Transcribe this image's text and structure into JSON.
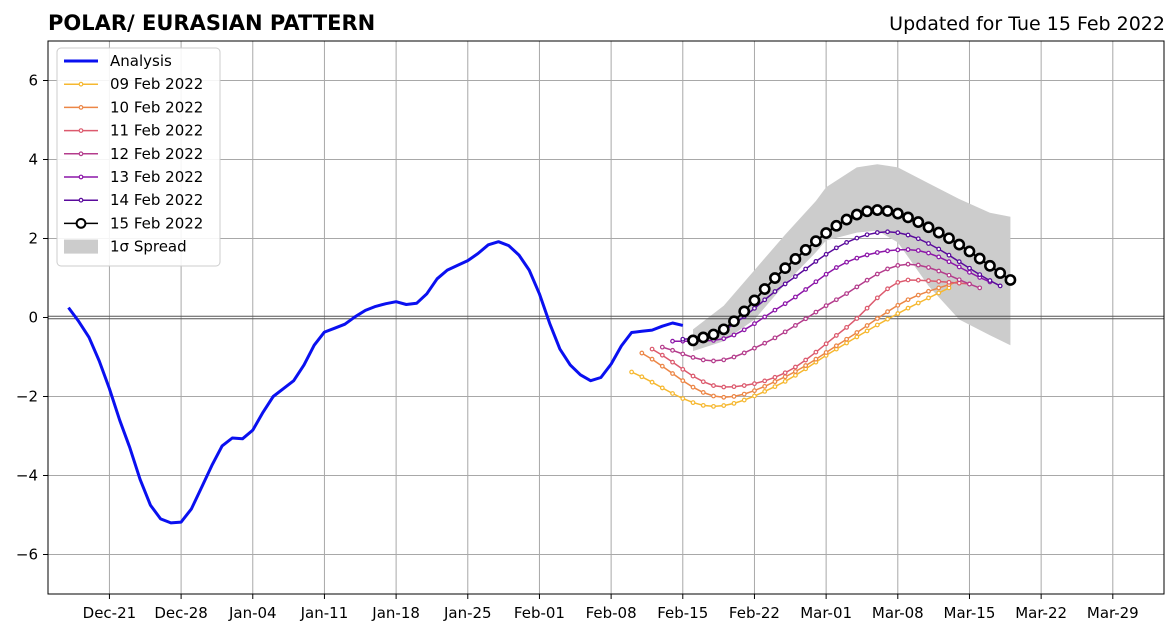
{
  "header": {
    "title": "POLAR/ EURASIAN  PATTERN",
    "updated": "Updated for Tue 15 Feb 2022"
  },
  "chart_data": {
    "type": "line",
    "title": "POLAR/ EURASIAN  PATTERN",
    "xlabel": "",
    "ylabel": "",
    "x_axis": {
      "type": "date",
      "range": [
        "2021-12-15",
        "2022-04-03"
      ],
      "tick_dates": [
        "2021-12-21",
        "2021-12-28",
        "2022-01-04",
        "2022-01-11",
        "2022-01-18",
        "2022-01-25",
        "2022-02-01",
        "2022-02-08",
        "2022-02-15",
        "2022-02-22",
        "2022-03-01",
        "2022-03-08",
        "2022-03-15",
        "2022-03-22",
        "2022-03-29"
      ],
      "tick_labels": [
        "Dec-21",
        "Dec-28",
        "Jan-04",
        "Jan-11",
        "Jan-18",
        "Jan-25",
        "Feb-01",
        "Feb-08",
        "Feb-15",
        "Feb-22",
        "Mar-01",
        "Mar-08",
        "Mar-15",
        "Mar-22",
        "Mar-29"
      ]
    },
    "y_axis": {
      "range": [
        -7,
        7
      ],
      "ticks": [
        -6,
        -4,
        -2,
        0,
        2,
        4,
        6
      ],
      "tick_labels": [
        "−6",
        "−4",
        "−2",
        "0",
        "2",
        "4",
        "6"
      ]
    },
    "grid": true,
    "zero_line": true,
    "legend": {
      "position": "top-left",
      "entries": [
        "Analysis",
        "09 Feb 2022",
        "10 Feb 2022",
        "11 Feb 2022",
        "12 Feb 2022",
        "13 Feb 2022",
        "14 Feb 2022",
        "15 Feb 2022",
        "1σ Spread"
      ]
    },
    "analysis": {
      "name": "Analysis",
      "color": "#0a10f0",
      "points": [
        [
          "2021-12-17",
          0.25
        ],
        [
          "2021-12-18",
          -0.1
        ],
        [
          "2021-12-19",
          -0.5
        ],
        [
          "2021-12-20",
          -1.1
        ],
        [
          "2021-12-21",
          -1.8
        ],
        [
          "2021-12-22",
          -2.6
        ],
        [
          "2021-12-23",
          -3.3
        ],
        [
          "2021-12-24",
          -4.1
        ],
        [
          "2021-12-25",
          -4.75
        ],
        [
          "2021-12-26",
          -5.1
        ],
        [
          "2021-12-27",
          -5.2
        ],
        [
          "2021-12-28",
          -5.18
        ],
        [
          "2021-12-29",
          -4.85
        ],
        [
          "2021-12-30",
          -4.3
        ],
        [
          "2021-12-31",
          -3.75
        ],
        [
          "2022-01-01",
          -3.25
        ],
        [
          "2022-01-02",
          -3.05
        ],
        [
          "2022-01-03",
          -3.07
        ],
        [
          "2022-01-04",
          -2.85
        ],
        [
          "2022-01-05",
          -2.4
        ],
        [
          "2022-01-06",
          -2.0
        ],
        [
          "2022-01-07",
          -1.8
        ],
        [
          "2022-01-08",
          -1.6
        ],
        [
          "2022-01-09",
          -1.2
        ],
        [
          "2022-01-10",
          -0.7
        ],
        [
          "2022-01-11",
          -0.37
        ],
        [
          "2022-01-12",
          -0.27
        ],
        [
          "2022-01-13",
          -0.17
        ],
        [
          "2022-01-14",
          0.02
        ],
        [
          "2022-01-15",
          0.18
        ],
        [
          "2022-01-16",
          0.28
        ],
        [
          "2022-01-17",
          0.35
        ],
        [
          "2022-01-18",
          0.4
        ],
        [
          "2022-01-19",
          0.33
        ],
        [
          "2022-01-20",
          0.36
        ],
        [
          "2022-01-21",
          0.6
        ],
        [
          "2022-01-22",
          0.98
        ],
        [
          "2022-01-23",
          1.2
        ],
        [
          "2022-01-24",
          1.32
        ],
        [
          "2022-01-25",
          1.44
        ],
        [
          "2022-01-26",
          1.62
        ],
        [
          "2022-01-27",
          1.84
        ],
        [
          "2022-01-28",
          1.92
        ],
        [
          "2022-01-29",
          1.82
        ],
        [
          "2022-01-30",
          1.58
        ],
        [
          "2022-01-31",
          1.2
        ],
        [
          "2022-02-01",
          0.6
        ],
        [
          "2022-02-02",
          -0.15
        ],
        [
          "2022-02-03",
          -0.8
        ],
        [
          "2022-02-04",
          -1.2
        ],
        [
          "2022-02-05",
          -1.45
        ],
        [
          "2022-02-06",
          -1.6
        ],
        [
          "2022-02-07",
          -1.52
        ],
        [
          "2022-02-08",
          -1.18
        ],
        [
          "2022-02-09",
          -0.72
        ],
        [
          "2022-02-10",
          -0.38
        ],
        [
          "2022-02-11",
          -0.35
        ],
        [
          "2022-02-12",
          -0.32
        ],
        [
          "2022-02-13",
          -0.22
        ],
        [
          "2022-02-14",
          -0.14
        ],
        [
          "2022-02-15",
          -0.2
        ]
      ]
    },
    "forecasts": [
      {
        "name": "09 Feb 2022",
        "color": "#f6b830",
        "start": "2022-02-10",
        "end": "2022-03-13",
        "anchors": [
          [
            0,
            -1.38
          ],
          [
            8,
            -2.25
          ],
          [
            14,
            -1.75
          ],
          [
            20,
            -0.8
          ],
          [
            26,
            0.1
          ],
          [
            31,
            0.75
          ]
        ]
      },
      {
        "name": "10 Feb 2022",
        "color": "#ec8646",
        "start": "2022-02-11",
        "end": "2022-03-14",
        "anchors": [
          [
            0,
            -0.9
          ],
          [
            8,
            -2.02
          ],
          [
            14,
            -1.5
          ],
          [
            20,
            -0.55
          ],
          [
            26,
            0.45
          ],
          [
            31,
            0.92
          ]
        ]
      },
      {
        "name": "11 Feb 2022",
        "color": "#dc5a6e",
        "start": "2022-02-12",
        "end": "2022-03-15",
        "anchors": [
          [
            0,
            -0.8
          ],
          [
            7,
            -1.76
          ],
          [
            13,
            -1.4
          ],
          [
            19,
            -0.25
          ],
          [
            25,
            0.95
          ],
          [
            31,
            0.85
          ]
        ]
      },
      {
        "name": "12 Feb 2022",
        "color": "#b43c8c",
        "start": "2022-02-13",
        "end": "2022-03-16",
        "anchors": [
          [
            0,
            -0.75
          ],
          [
            5,
            -1.1
          ],
          [
            10,
            -0.65
          ],
          [
            17,
            0.45
          ],
          [
            24,
            1.35
          ],
          [
            31,
            0.75
          ]
        ]
      },
      {
        "name": "13 Feb 2022",
        "color": "#8c16a8",
        "start": "2022-02-14",
        "end": "2022-03-17",
        "anchors": [
          [
            0,
            -0.6
          ],
          [
            4,
            -0.58
          ],
          [
            11,
            0.35
          ],
          [
            17,
            1.4
          ],
          [
            23,
            1.72
          ],
          [
            31,
            0.9
          ]
        ]
      },
      {
        "name": "14 Feb 2022",
        "color": "#5a0a9c",
        "start": "2022-02-15",
        "end": "2022-03-18",
        "anchors": [
          [
            0,
            -0.55
          ],
          [
            3,
            -0.45
          ],
          [
            10,
            0.85
          ],
          [
            16,
            1.9
          ],
          [
            20,
            2.17
          ],
          [
            31,
            0.8
          ]
        ]
      },
      {
        "name": "15 Feb 2022",
        "color": "#000000",
        "start": "2022-02-16",
        "end": "2022-03-19",
        "anchors": [
          [
            0,
            -0.58
          ],
          [
            3,
            -0.3
          ],
          [
            9,
            1.25
          ],
          [
            15,
            2.48
          ],
          [
            18,
            2.72
          ],
          [
            24,
            2.15
          ],
          [
            31,
            0.95
          ]
        ]
      }
    ],
    "spread": {
      "name": "1σ Spread",
      "color": "#cccccc",
      "upper": [
        [
          "2022-02-16",
          -0.3
        ],
        [
          "2022-02-19",
          0.3
        ],
        [
          "2022-02-22",
          1.2
        ],
        [
          "2022-02-25",
          2.1
        ],
        [
          "2022-02-28",
          2.95
        ],
        [
          "2022-03-01",
          3.3
        ],
        [
          "2022-03-04",
          3.8
        ],
        [
          "2022-03-06",
          3.88
        ],
        [
          "2022-03-08",
          3.8
        ],
        [
          "2022-03-11",
          3.4
        ],
        [
          "2022-03-14",
          3.0
        ],
        [
          "2022-03-17",
          2.65
        ],
        [
          "2022-03-19",
          2.55
        ]
      ],
      "lower": [
        [
          "2022-02-16",
          -0.85
        ],
        [
          "2022-02-19",
          -0.6
        ],
        [
          "2022-02-22",
          -0.05
        ],
        [
          "2022-02-25",
          0.85
        ],
        [
          "2022-02-28",
          1.65
        ],
        [
          "2022-03-01",
          1.95
        ],
        [
          "2022-03-04",
          2.15
        ],
        [
          "2022-03-06",
          2.2
        ],
        [
          "2022-03-08",
          1.9
        ],
        [
          "2022-03-11",
          0.8
        ],
        [
          "2022-03-14",
          -0.05
        ],
        [
          "2022-03-17",
          -0.45
        ],
        [
          "2022-03-19",
          -0.7
        ]
      ]
    }
  }
}
